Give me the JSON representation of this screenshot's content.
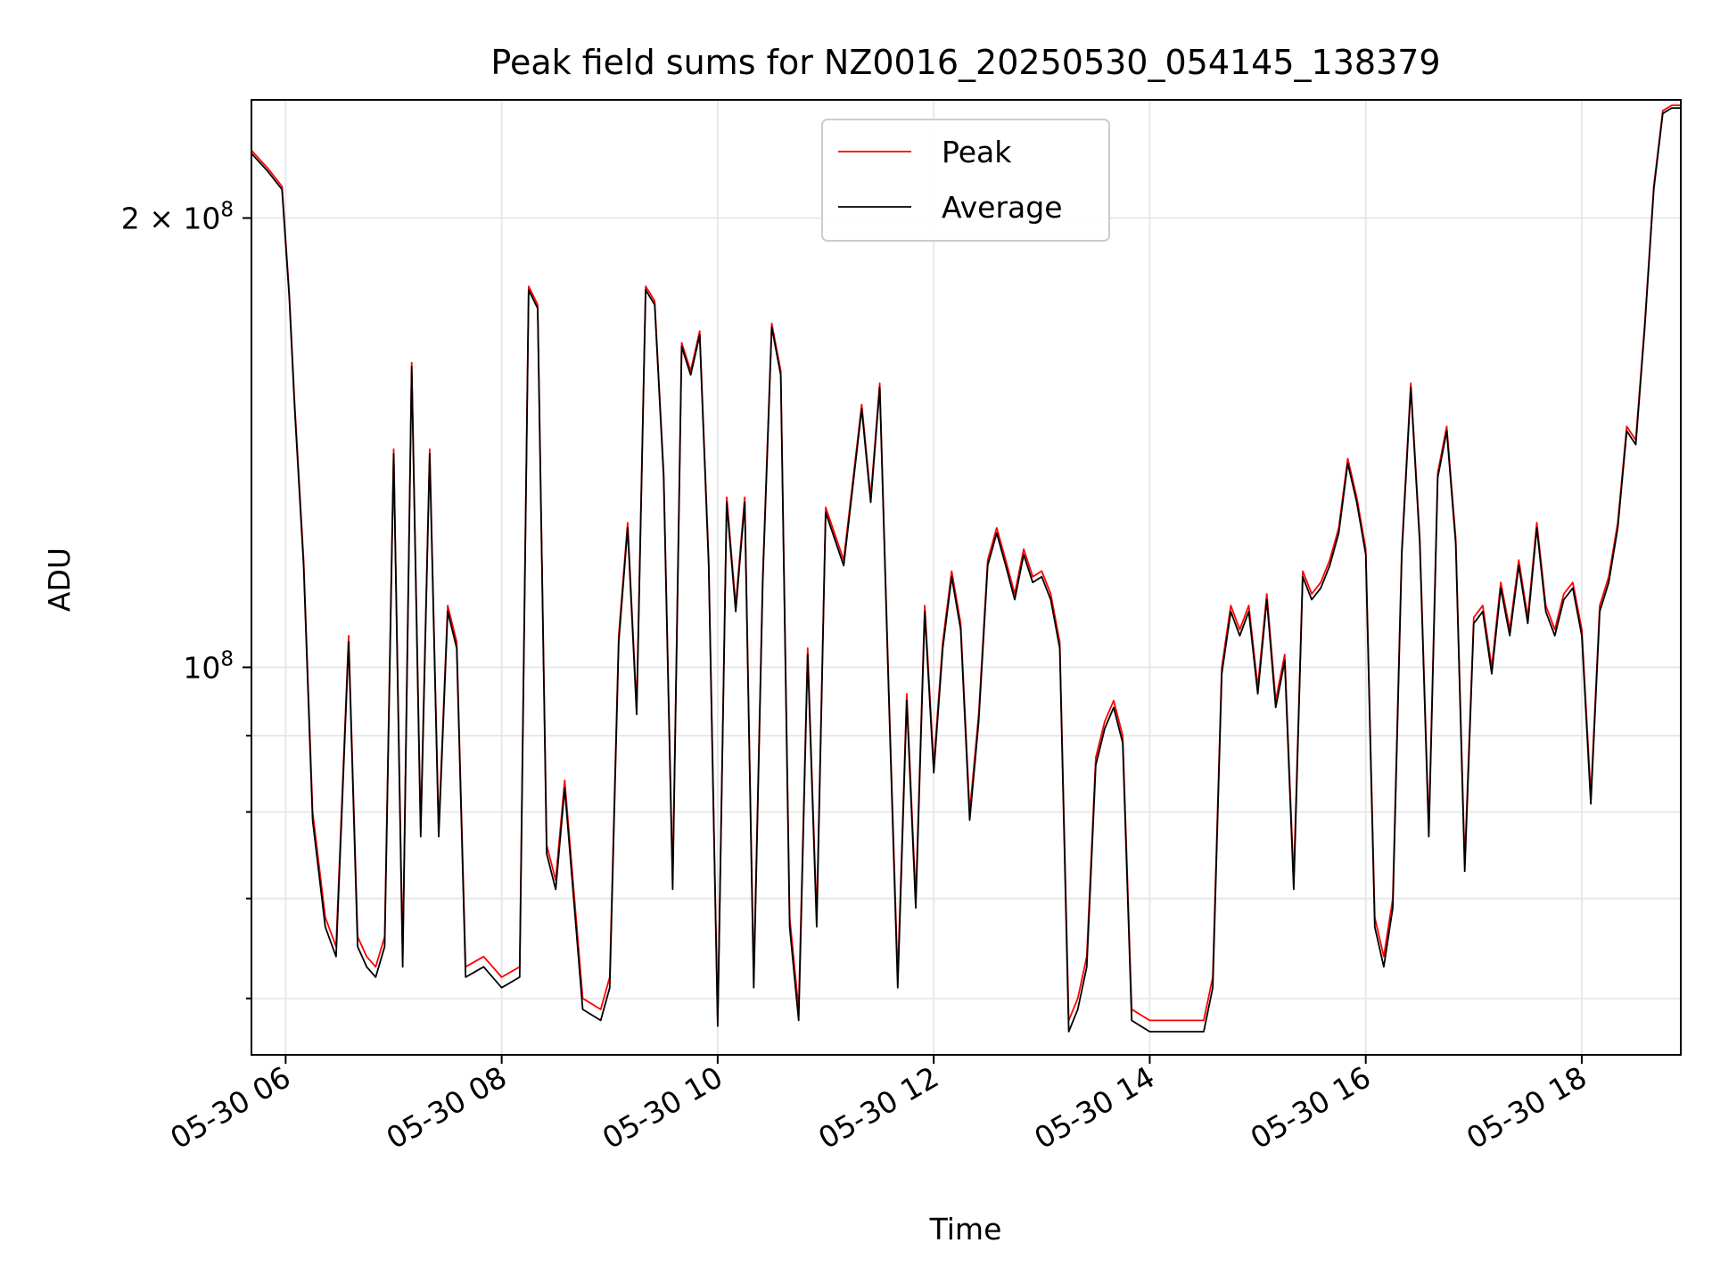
{
  "chart_data": {
    "type": "line",
    "title": "Peak field sums for NZ0016_20250530_054145_138379",
    "xlabel": "Time",
    "ylabel": "ADU",
    "x_axis_type": "datetime",
    "y_scale": "log",
    "xlim": [
      "2025-05-30T05:41",
      "2025-05-30T18:55"
    ],
    "ylim": [
      55000000,
      240000000
    ],
    "grid": true,
    "legend_position": "upper center",
    "x_ticks": [
      {
        "value": "2025-05-30T06:00",
        "label": "05-30 06"
      },
      {
        "value": "2025-05-30T08:00",
        "label": "05-30 08"
      },
      {
        "value": "2025-05-30T10:00",
        "label": "05-30 10"
      },
      {
        "value": "2025-05-30T12:00",
        "label": "05-30 12"
      },
      {
        "value": "2025-05-30T14:00",
        "label": "05-30 14"
      },
      {
        "value": "2025-05-30T16:00",
        "label": "05-30 16"
      },
      {
        "value": "2025-05-30T18:00",
        "label": "05-30 18"
      }
    ],
    "y_ticks": [
      {
        "value": 100000000,
        "mantissa": "",
        "exponent": "8"
      },
      {
        "value": 200000000,
        "mantissa": "2 × ",
        "exponent": "8"
      }
    ],
    "y_minor_ticks": [
      60000000,
      70000000,
      80000000,
      90000000
    ],
    "series": [
      {
        "name": "Peak",
        "color": "#ff0000",
        "x": [
          "2025-05-30T05:41",
          "2025-05-30T05:50",
          "2025-05-30T05:58",
          "2025-05-30T06:02",
          "2025-05-30T06:05",
          "2025-05-30T06:10",
          "2025-05-30T06:15",
          "2025-05-30T06:22",
          "2025-05-30T06:28",
          "2025-05-30T06:35",
          "2025-05-30T06:40",
          "2025-05-30T06:45",
          "2025-05-30T06:50",
          "2025-05-30T06:55",
          "2025-05-30T07:00",
          "2025-05-30T07:05",
          "2025-05-30T07:10",
          "2025-05-30T07:15",
          "2025-05-30T07:20",
          "2025-05-30T07:25",
          "2025-05-30T07:30",
          "2025-05-30T07:35",
          "2025-05-30T07:40",
          "2025-05-30T07:50",
          "2025-05-30T08:00",
          "2025-05-30T08:10",
          "2025-05-30T08:15",
          "2025-05-30T08:20",
          "2025-05-30T08:25",
          "2025-05-30T08:30",
          "2025-05-30T08:35",
          "2025-05-30T08:45",
          "2025-05-30T08:55",
          "2025-05-30T09:00",
          "2025-05-30T09:05",
          "2025-05-30T09:10",
          "2025-05-30T09:15",
          "2025-05-30T09:20",
          "2025-05-30T09:25",
          "2025-05-30T09:30",
          "2025-05-30T09:35",
          "2025-05-30T09:40",
          "2025-05-30T09:45",
          "2025-05-30T09:50",
          "2025-05-30T09:55",
          "2025-05-30T10:00",
          "2025-05-30T10:05",
          "2025-05-30T10:10",
          "2025-05-30T10:15",
          "2025-05-30T10:20",
          "2025-05-30T10:25",
          "2025-05-30T10:30",
          "2025-05-30T10:35",
          "2025-05-30T10:40",
          "2025-05-30T10:45",
          "2025-05-30T10:50",
          "2025-05-30T10:55",
          "2025-05-30T11:00",
          "2025-05-30T11:10",
          "2025-05-30T11:20",
          "2025-05-30T11:25",
          "2025-05-30T11:30",
          "2025-05-30T11:35",
          "2025-05-30T11:40",
          "2025-05-30T11:45",
          "2025-05-30T11:50",
          "2025-05-30T11:55",
          "2025-05-30T12:00",
          "2025-05-30T12:05",
          "2025-05-30T12:10",
          "2025-05-30T12:15",
          "2025-05-30T12:20",
          "2025-05-30T12:25",
          "2025-05-30T12:30",
          "2025-05-30T12:35",
          "2025-05-30T12:40",
          "2025-05-30T12:45",
          "2025-05-30T12:50",
          "2025-05-30T12:55",
          "2025-05-30T13:00",
          "2025-05-30T13:05",
          "2025-05-30T13:10",
          "2025-05-30T13:15",
          "2025-05-30T13:20",
          "2025-05-30T13:25",
          "2025-05-30T13:30",
          "2025-05-30T13:35",
          "2025-05-30T13:40",
          "2025-05-30T13:45",
          "2025-05-30T13:50",
          "2025-05-30T14:00",
          "2025-05-30T14:10",
          "2025-05-30T14:20",
          "2025-05-30T14:30",
          "2025-05-30T14:35",
          "2025-05-30T14:40",
          "2025-05-30T14:45",
          "2025-05-30T14:50",
          "2025-05-30T14:55",
          "2025-05-30T15:00",
          "2025-05-30T15:05",
          "2025-05-30T15:10",
          "2025-05-30T15:15",
          "2025-05-30T15:20",
          "2025-05-30T15:25",
          "2025-05-30T15:30",
          "2025-05-30T15:35",
          "2025-05-30T15:40",
          "2025-05-30T15:45",
          "2025-05-30T15:50",
          "2025-05-30T15:55",
          "2025-05-30T16:00",
          "2025-05-30T16:05",
          "2025-05-30T16:10",
          "2025-05-30T16:15",
          "2025-05-30T16:20",
          "2025-05-30T16:25",
          "2025-05-30T16:30",
          "2025-05-30T16:35",
          "2025-05-30T16:40",
          "2025-05-30T16:45",
          "2025-05-30T16:50",
          "2025-05-30T16:55",
          "2025-05-30T17:00",
          "2025-05-30T17:05",
          "2025-05-30T17:10",
          "2025-05-30T17:15",
          "2025-05-30T17:20",
          "2025-05-30T17:25",
          "2025-05-30T17:30",
          "2025-05-30T17:35",
          "2025-05-30T17:40",
          "2025-05-30T17:45",
          "2025-05-30T17:50",
          "2025-05-30T17:55",
          "2025-05-30T18:00",
          "2025-05-30T18:05",
          "2025-05-30T18:10",
          "2025-05-30T18:15",
          "2025-05-30T18:20",
          "2025-05-30T18:25",
          "2025-05-30T18:30",
          "2025-05-30T18:35",
          "2025-05-30T18:40",
          "2025-05-30T18:45",
          "2025-05-30T18:50",
          "2025-05-30T18:55"
        ],
        "values": [
          222000000,
          216000000,
          210000000,
          178000000,
          150000000,
          118000000,
          80000000,
          68000000,
          65000000,
          105000000,
          66000000,
          64000000,
          63000000,
          66000000,
          140000000,
          64000000,
          160000000,
          78000000,
          140000000,
          78000000,
          110000000,
          104000000,
          63000000,
          64000000,
          62000000,
          63000000,
          180000000,
          175000000,
          76000000,
          72000000,
          84000000,
          60000000,
          59000000,
          62000000,
          105000000,
          125000000,
          94000000,
          180000000,
          176000000,
          135000000,
          72000000,
          165000000,
          158000000,
          168000000,
          118000000,
          58000000,
          130000000,
          110000000,
          130000000,
          62000000,
          115000000,
          170000000,
          158000000,
          68000000,
          59000000,
          103000000,
          68000000,
          128000000,
          118000000,
          150000000,
          130000000,
          155000000,
          97000000,
          62000000,
          96000000,
          70000000,
          110000000,
          86000000,
          104000000,
          116000000,
          107000000,
          80000000,
          93000000,
          118000000,
          124000000,
          118000000,
          112000000,
          120000000,
          115000000,
          116000000,
          112000000,
          104000000,
          58000000,
          60000000,
          64000000,
          87000000,
          92000000,
          95000000,
          90000000,
          59000000,
          58000000,
          58000000,
          58000000,
          58000000,
          62000000,
          100000000,
          110000000,
          106000000,
          110000000,
          97000000,
          112000000,
          95000000,
          102000000,
          72000000,
          116000000,
          112000000,
          114000000,
          118000000,
          124000000,
          138000000,
          130000000,
          120000000,
          68000000,
          64000000,
          70000000,
          120000000,
          155000000,
          122000000,
          78000000,
          135000000,
          145000000,
          122000000,
          74000000,
          108000000,
          110000000,
          100000000,
          114000000,
          106000000,
          118000000,
          108000000,
          125000000,
          110000000,
          106000000,
          112000000,
          114000000,
          106000000,
          82000000,
          110000000,
          115000000,
          125000000,
          145000000,
          142000000,
          170000000,
          210000000,
          236000000,
          238000000,
          238000000
        ],
        "label_position": "legend"
      },
      {
        "name": "Average",
        "color": "#000000",
        "x_same_as": "Peak",
        "values": [
          221000000,
          215000000,
          209000000,
          177000000,
          149000000,
          117000000,
          79000000,
          67000000,
          64000000,
          104000000,
          65000000,
          63000000,
          62000000,
          65000000,
          139000000,
          63000000,
          159000000,
          77000000,
          139000000,
          77000000,
          109000000,
          103000000,
          62000000,
          63000000,
          61000000,
          62000000,
          179000000,
          174000000,
          75000000,
          71000000,
          83000000,
          59000000,
          58000000,
          61000000,
          104000000,
          124000000,
          93000000,
          179000000,
          175000000,
          134000000,
          71000000,
          164000000,
          157000000,
          167000000,
          117000000,
          57500000,
          129000000,
          109000000,
          129000000,
          61000000,
          114000000,
          169000000,
          157000000,
          67000000,
          58000000,
          102000000,
          67000000,
          127000000,
          117000000,
          149000000,
          129000000,
          154000000,
          96000000,
          61000000,
          95000000,
          69000000,
          109000000,
          85000000,
          103000000,
          115000000,
          106000000,
          79000000,
          92000000,
          117000000,
          123000000,
          117000000,
          111000000,
          119000000,
          114000000,
          115000000,
          111000000,
          103000000,
          57000000,
          59000000,
          63000000,
          86000000,
          91000000,
          94000000,
          89000000,
          58000000,
          57000000,
          57000000,
          57000000,
          57000000,
          61000000,
          99000000,
          109000000,
          105000000,
          109000000,
          96000000,
          111000000,
          94000000,
          101000000,
          71000000,
          115000000,
          111000000,
          113000000,
          117000000,
          123000000,
          137000000,
          129000000,
          119000000,
          67000000,
          63000000,
          69000000,
          119000000,
          154000000,
          121000000,
          77000000,
          134000000,
          144000000,
          121000000,
          73000000,
          107000000,
          109000000,
          99000000,
          113000000,
          105000000,
          117000000,
          107000000,
          124000000,
          109000000,
          105000000,
          111000000,
          113000000,
          105000000,
          81000000,
          109000000,
          114000000,
          124000000,
          144000000,
          141000000,
          169000000,
          209000000,
          235000000,
          237000000,
          237000000
        ]
      }
    ]
  }
}
